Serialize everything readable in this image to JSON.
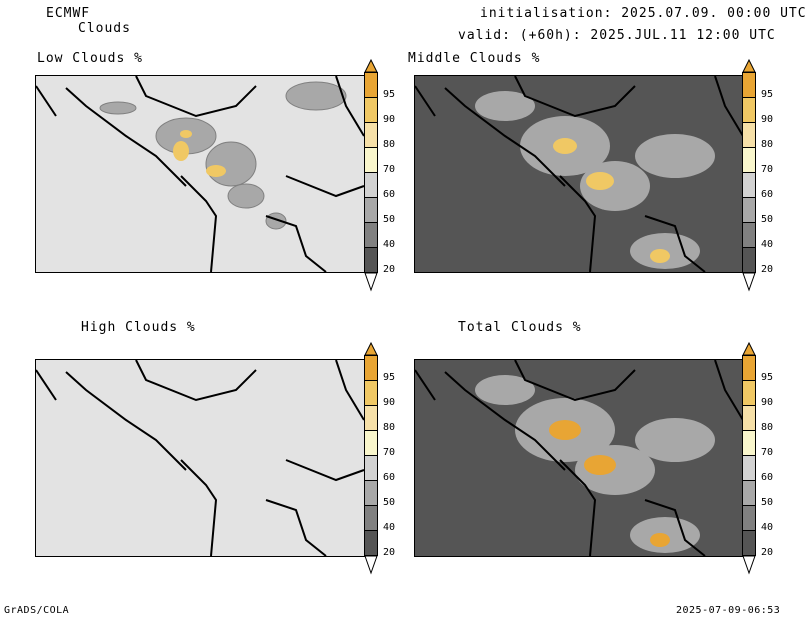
{
  "header": {
    "model": "ECMWF",
    "product": "Clouds",
    "init": "initialisation: 2025.07.09. 00:00 UTC",
    "valid": "valid: (+60h): 2025.JUL.11 12:00 UTC"
  },
  "panels": [
    {
      "title": "Low Clouds %"
    },
    {
      "title": "Middle Clouds %"
    },
    {
      "title": "High Clouds %"
    },
    {
      "title": "Total Clouds %"
    }
  ],
  "colorbar": {
    "labels": [
      "95",
      "90",
      "80",
      "70",
      "60",
      "50",
      "40",
      "20"
    ],
    "colors": [
      "#e8a534",
      "#f0c864",
      "#f6e0a8",
      "#f9f6cc",
      "#d2d2d2",
      "#a8a8a8",
      "#808080",
      "#555555"
    ]
  },
  "footer": {
    "left": "GrADS/COLA",
    "right": "2025-07-09-06:53"
  }
}
